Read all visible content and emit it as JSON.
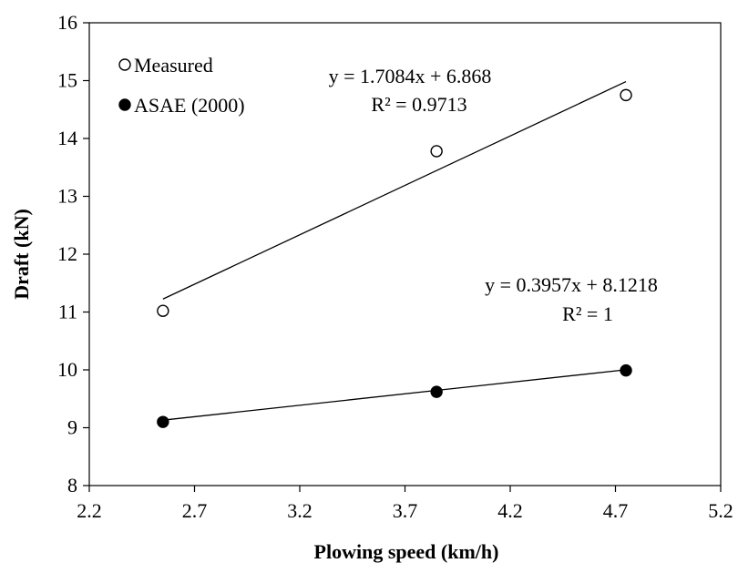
{
  "chart_data": {
    "type": "scatter",
    "xlabel": "Plowing  speed (km/h)",
    "ylabel": "Draft  (kN)",
    "xlim": [
      2.2,
      5.2
    ],
    "ylim": [
      8,
      16
    ],
    "xticks": [
      "2.2",
      "2.7",
      "3.2",
      "3.7",
      "4.2",
      "4.7",
      "5.2"
    ],
    "yticks": [
      "8",
      "9",
      "10",
      "11",
      "12",
      "13",
      "14",
      "15",
      "16"
    ],
    "grid": false,
    "legend_position": "top-left",
    "series": [
      {
        "name": "Measured",
        "marker": "open-circle",
        "x": [
          2.55,
          3.85,
          4.75
        ],
        "y": [
          11.02,
          13.78,
          14.75
        ],
        "trendline": {
          "slope": 1.7084,
          "intercept": 6.868,
          "equation": "y = 1.7084x + 6.868",
          "r2": "R² = 0.9713"
        }
      },
      {
        "name": "ASAE (2000)",
        "marker": "filled-circle",
        "x": [
          2.55,
          3.85,
          4.75
        ],
        "y": [
          9.1,
          9.62,
          9.99
        ],
        "trendline": {
          "slope": 0.3957,
          "intercept": 8.1218,
          "equation": "y = 0.3957x + 8.1218",
          "r2": "R² = 1"
        }
      }
    ]
  }
}
